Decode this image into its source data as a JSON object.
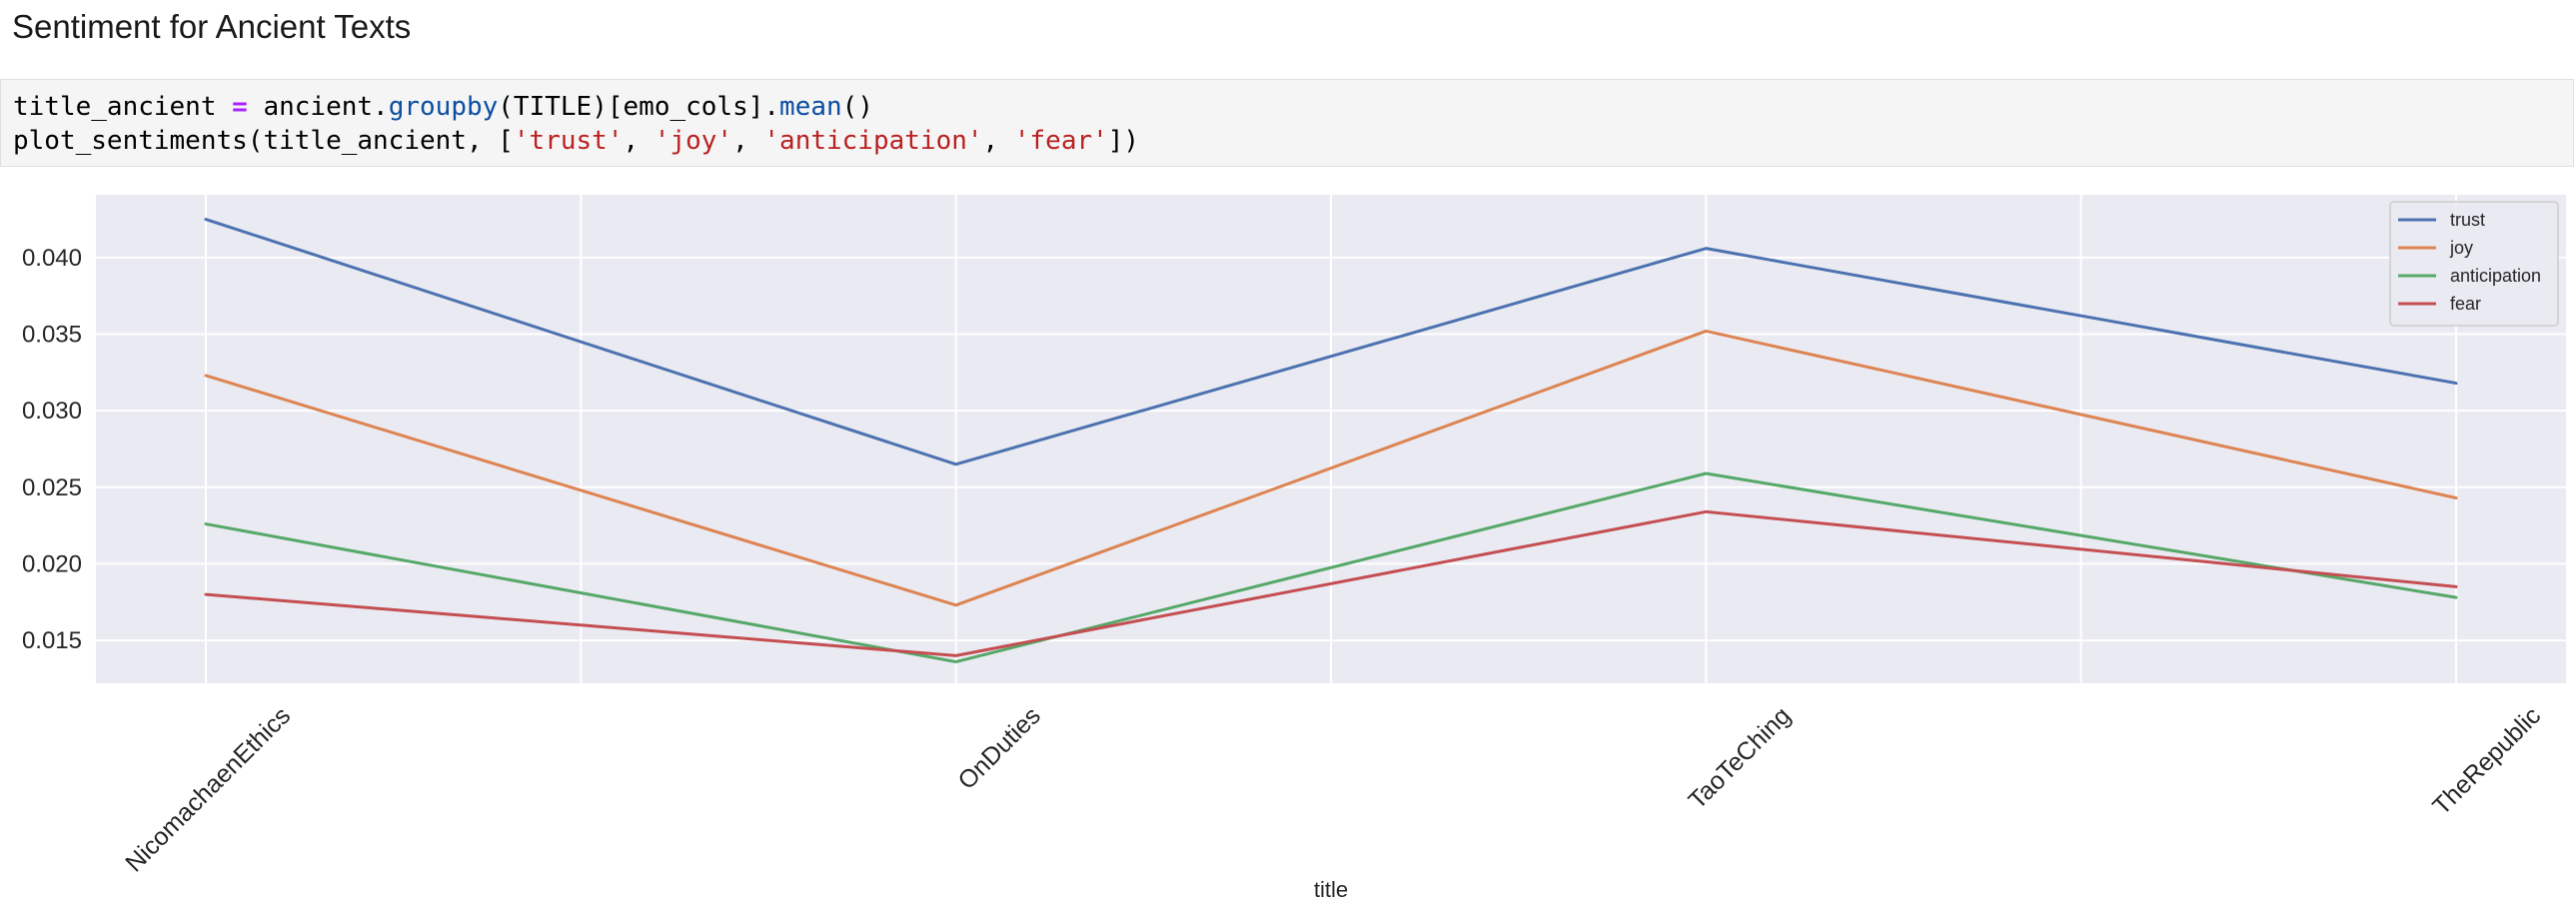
{
  "notebook": {
    "heading": "Sentiment for Ancient Texts",
    "code": {
      "line1": {
        "var": "title_ancient ",
        "op": "=",
        "mid": " ancient.",
        "fn1": "groupby",
        "mid2": "(TITLE)[emo_cols].",
        "fn2": "mean",
        "end": "()"
      },
      "line2": {
        "start": "plot_sentiments(title_ancient, [",
        "s1": "'trust'",
        "s2": "'joy'",
        "s3": "'anticipation'",
        "s4": "'fear'",
        "sep": ", ",
        "end": "])"
      }
    }
  },
  "chart_data": {
    "type": "line",
    "title": "",
    "xlabel": "title",
    "ylabel": "",
    "categories": [
      "NicomachaenEthics",
      "OnDuties",
      "TaoTeChing",
      "TheRepublic"
    ],
    "yticks": [
      0.015,
      0.02,
      0.025,
      0.03,
      0.035,
      0.04
    ],
    "ytick_labels": [
      "0.015",
      "0.020",
      "0.025",
      "0.030",
      "0.035",
      "0.040"
    ],
    "ylim": [
      0.0122,
      0.0441
    ],
    "grid": true,
    "legend_position": "top-right",
    "series": [
      {
        "name": "trust",
        "color": "#4c72b0",
        "values": [
          0.0425,
          0.0265,
          0.0406,
          0.0318
        ]
      },
      {
        "name": "joy",
        "color": "#dd8452",
        "values": [
          0.0323,
          0.0173,
          0.0352,
          0.0243
        ]
      },
      {
        "name": "anticipation",
        "color": "#55a868",
        "values": [
          0.0226,
          0.0136,
          0.0259,
          0.0178
        ]
      },
      {
        "name": "fear",
        "color": "#c44e52",
        "values": [
          0.018,
          0.014,
          0.0234,
          0.0185
        ]
      }
    ]
  }
}
